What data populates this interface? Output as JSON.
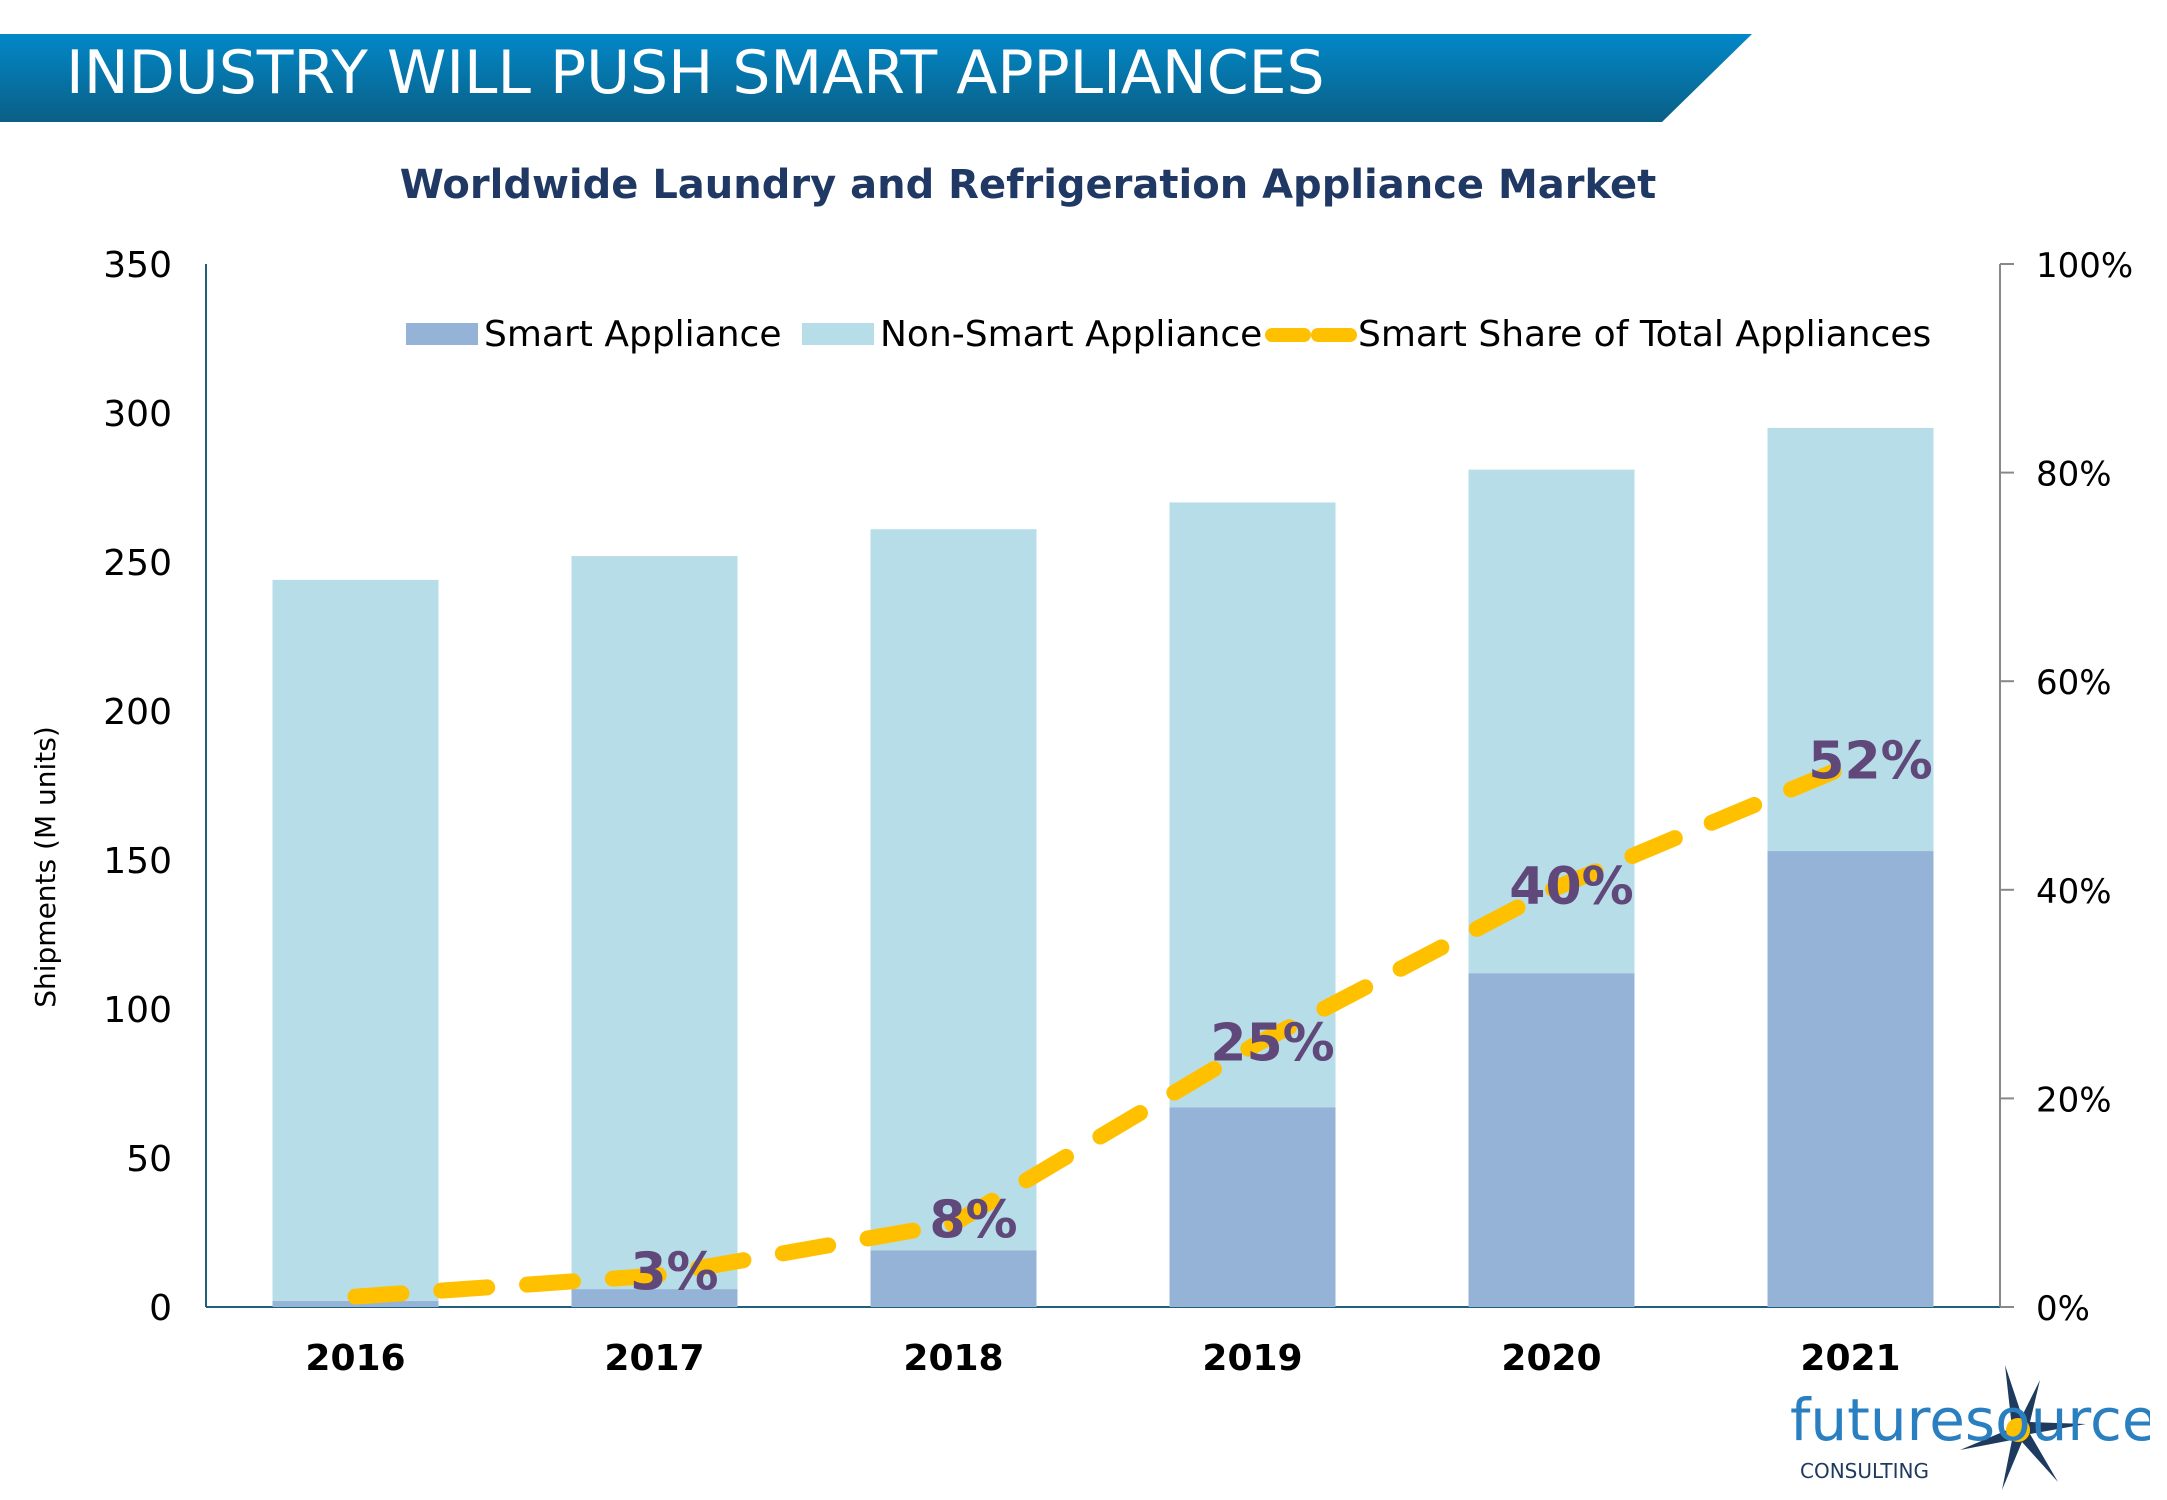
{
  "header": {
    "title": "INDUSTRY WILL PUSH SMART APPLIANCES"
  },
  "logo": {
    "wordmark": "futuresource",
    "tagline": "CONSULTING"
  },
  "colors": {
    "banner_top": "#0288c8",
    "banner_bottom": "#0a5f86",
    "smart": "#95b3d7",
    "non_smart": "#b7dee8",
    "share_line": "#ffc000",
    "share_label": "#60497a",
    "title": "#1f3864"
  },
  "chart_data": {
    "type": "bar",
    "stacked": true,
    "title": "Worldwide Laundry and Refrigeration Appliance Market",
    "ylabel": "Shipments (M units)",
    "ylim": [
      0,
      350
    ],
    "yticks": [
      0,
      50,
      100,
      150,
      200,
      250,
      300,
      350
    ],
    "y2lim": [
      0,
      100
    ],
    "y2ticks": [
      "0%",
      "20%",
      "40%",
      "60%",
      "80%",
      "100%"
    ],
    "y2tick_values": [
      0,
      20,
      40,
      60,
      80,
      100
    ],
    "categories": [
      "2016",
      "2017",
      "2018",
      "2019",
      "2020",
      "2021"
    ],
    "series": [
      {
        "name": "Smart Appliance",
        "type": "bar",
        "values": [
          2,
          6,
          19,
          67,
          112,
          153
        ]
      },
      {
        "name": "Non-Smart Appliance",
        "type": "bar",
        "values": [
          242,
          246,
          242,
          203,
          169,
          142
        ]
      },
      {
        "name": "Smart Share of Total Appliances",
        "type": "line",
        "axis": "right",
        "values": [
          1,
          3,
          8,
          25,
          40,
          52
        ],
        "labels": [
          "",
          "3%",
          "8%",
          "25%",
          "40%",
          "52%"
        ]
      }
    ],
    "legend": "top",
    "grid": false
  }
}
